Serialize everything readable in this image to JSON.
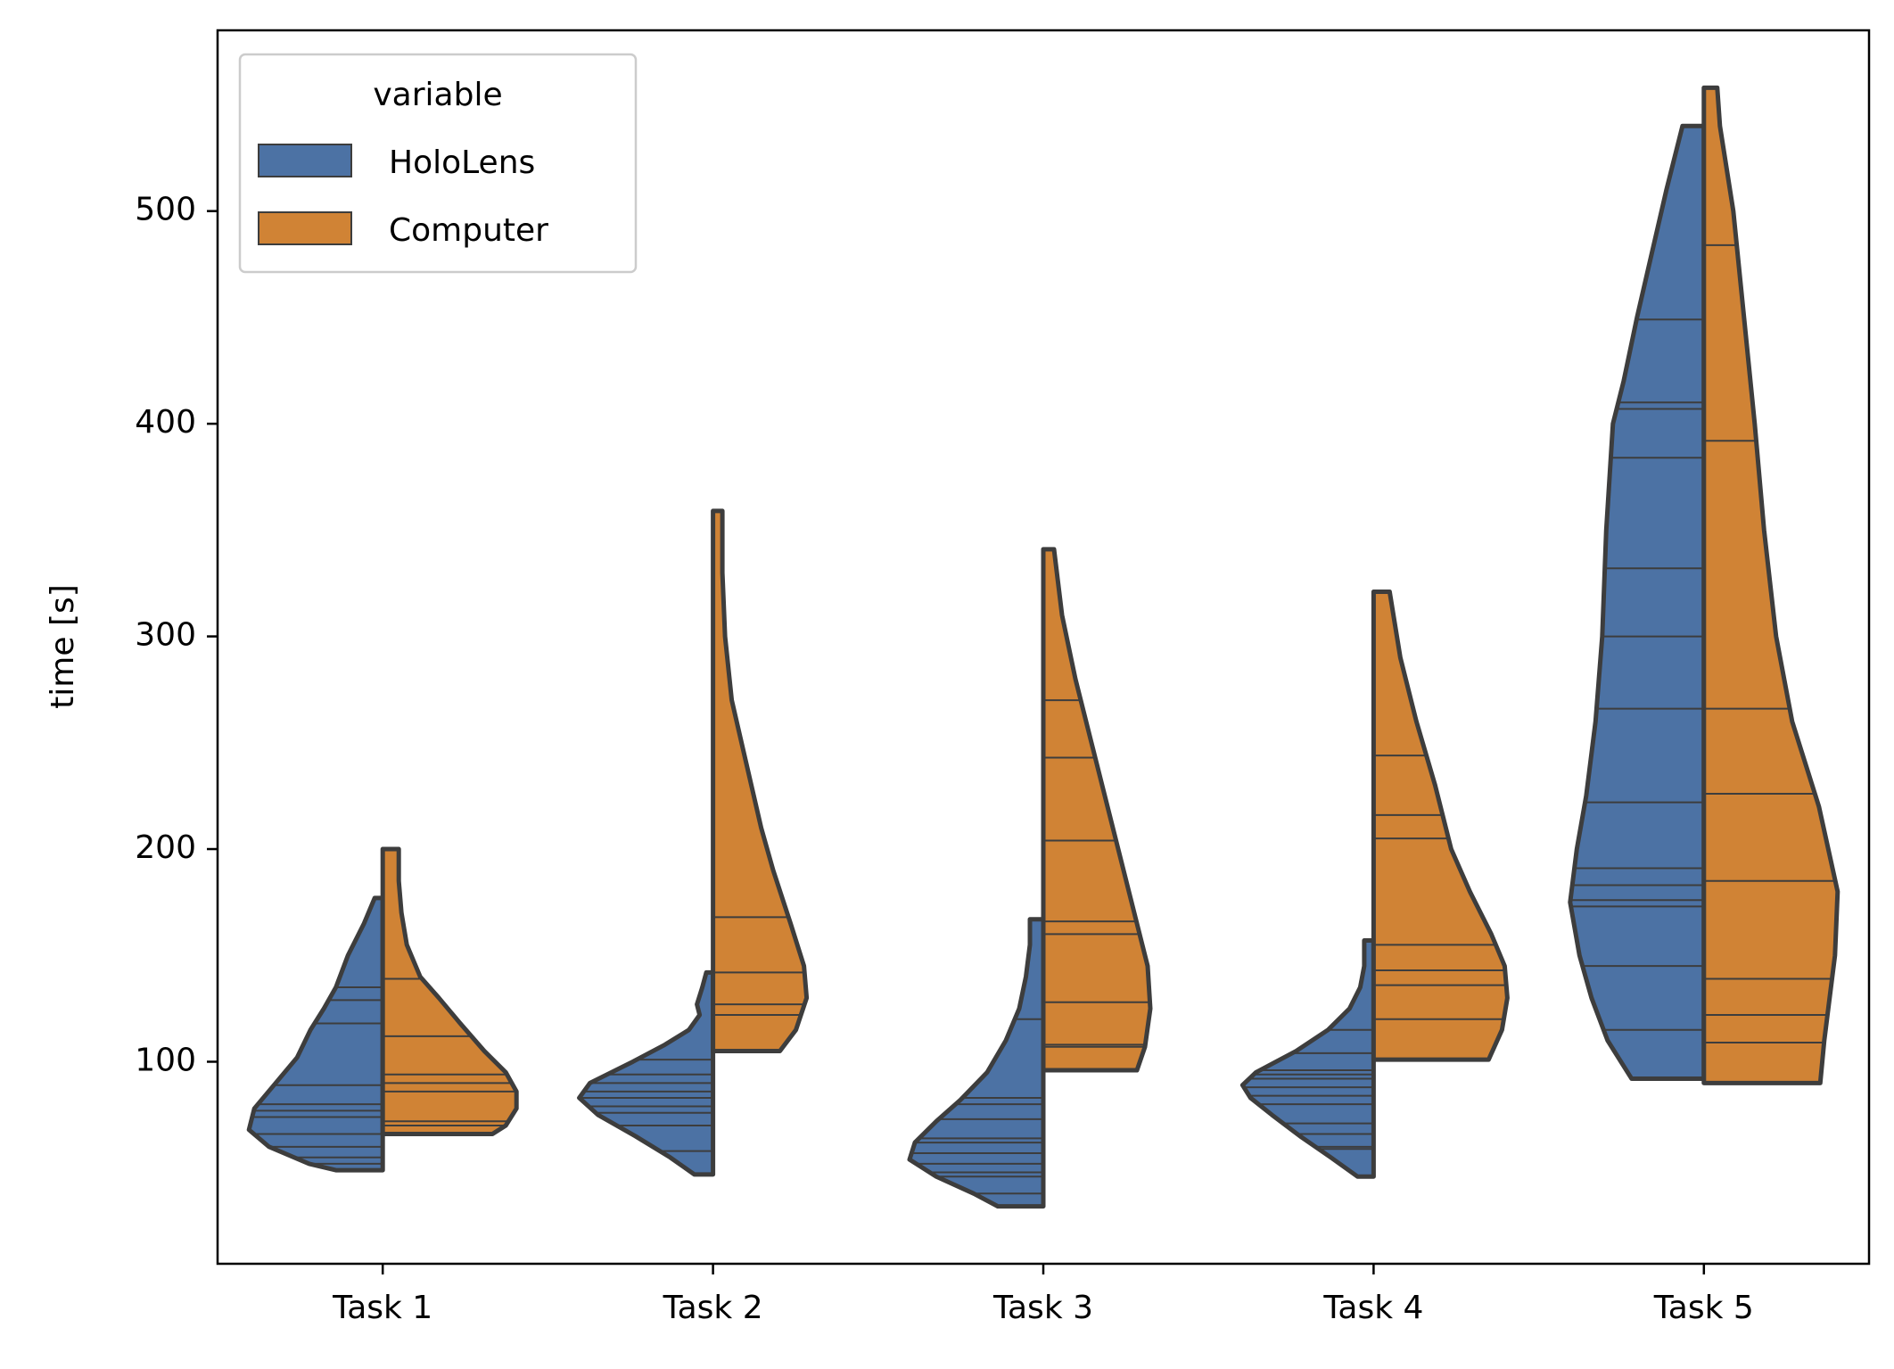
{
  "chart_data": {
    "type": "violin",
    "split": true,
    "inner": "stick",
    "title": "",
    "xlabel": "",
    "ylabel": "time [s]",
    "ylim": [
      5,
      585
    ],
    "yticks": [
      100,
      200,
      300,
      400,
      500
    ],
    "categories": [
      "Task 1",
      "Task 2",
      "Task 3",
      "Task 4",
      "Task 5"
    ],
    "legend": {
      "title": "variable",
      "location": "upper-left",
      "entries": [
        {
          "name": "HoloLens",
          "color": "#4c72a4"
        },
        {
          "name": "Computer",
          "color": "#d08335"
        }
      ]
    },
    "series": [
      {
        "name": "HoloLens",
        "color": "#4c72a4",
        "groups": [
          {
            "category": "Task 1",
            "min": 49,
            "max": 177,
            "sticks": [
              52,
              55,
              60,
              66,
              74,
              77,
              80,
              89,
              118,
              129,
              135
            ]
          },
          {
            "category": "Task 2",
            "min": 47,
            "max": 142,
            "sticks": [
              58,
              70,
              76,
              79,
              83,
              86,
              90,
              94,
              101
            ]
          },
          {
            "category": "Task 3",
            "min": 32,
            "max": 167,
            "sticks": [
              38,
              46,
              48,
              52,
              57,
              62,
              64,
              73,
              80,
              83,
              120
            ]
          },
          {
            "category": "Task 4",
            "min": 46,
            "max": 157,
            "sticks": [
              59,
              60,
              66,
              71,
              80,
              84,
              88,
              92,
              94,
              96,
              104,
              115
            ]
          },
          {
            "category": "Task 5",
            "min": 92,
            "max": 540,
            "sticks": [
              115,
              145,
              173,
              176,
              183,
              191,
              222,
              266,
              300,
              332,
              384,
              407,
              410,
              449
            ]
          }
        ],
        "density_shape": [
          [
            [
              49,
              0.35
            ],
            [
              52,
              0.55
            ],
            [
              60,
              0.85
            ],
            [
              68,
              1.0
            ],
            [
              78,
              0.96
            ],
            [
              90,
              0.8
            ],
            [
              102,
              0.64
            ],
            [
              115,
              0.54
            ],
            [
              125,
              0.44
            ],
            [
              135,
              0.35
            ],
            [
              150,
              0.26
            ],
            [
              165,
              0.14
            ],
            [
              177,
              0.06
            ]
          ],
          [
            [
              47,
              0.14
            ],
            [
              55,
              0.32
            ],
            [
              65,
              0.58
            ],
            [
              75,
              0.86
            ],
            [
              83,
              1.0
            ],
            [
              90,
              0.92
            ],
            [
              100,
              0.6
            ],
            [
              108,
              0.36
            ],
            [
              115,
              0.18
            ],
            [
              122,
              0.1
            ],
            [
              127,
              0.12
            ],
            [
              135,
              0.08
            ],
            [
              142,
              0.05
            ]
          ],
          [
            [
              32,
              0.34
            ],
            [
              38,
              0.52
            ],
            [
              46,
              0.8
            ],
            [
              54,
              1.0
            ],
            [
              62,
              0.96
            ],
            [
              72,
              0.8
            ],
            [
              82,
              0.62
            ],
            [
              95,
              0.42
            ],
            [
              110,
              0.28
            ],
            [
              125,
              0.18
            ],
            [
              140,
              0.13
            ],
            [
              155,
              0.1
            ],
            [
              167,
              0.1
            ]
          ],
          [
            [
              46,
              0.12
            ],
            [
              55,
              0.32
            ],
            [
              65,
              0.55
            ],
            [
              75,
              0.76
            ],
            [
              83,
              0.92
            ],
            [
              89,
              0.98
            ],
            [
              95,
              0.88
            ],
            [
              105,
              0.58
            ],
            [
              115,
              0.34
            ],
            [
              125,
              0.18
            ],
            [
              135,
              0.1
            ],
            [
              145,
              0.07
            ],
            [
              157,
              0.07
            ]
          ],
          [
            [
              92,
              0.54
            ],
            [
              110,
              0.72
            ],
            [
              130,
              0.84
            ],
            [
              150,
              0.93
            ],
            [
              175,
              1.0
            ],
            [
              200,
              0.95
            ],
            [
              225,
              0.88
            ],
            [
              260,
              0.81
            ],
            [
              300,
              0.76
            ],
            [
              350,
              0.73
            ],
            [
              400,
              0.68
            ],
            [
              420,
              0.6
            ],
            [
              450,
              0.5
            ],
            [
              480,
              0.39
            ],
            [
              510,
              0.28
            ],
            [
              540,
              0.16
            ]
          ]
        ]
      },
      {
        "name": "Computer",
        "color": "#d08335",
        "groups": [
          {
            "category": "Task 1",
            "min": 66,
            "max": 200,
            "sticks": [
              70,
              72,
              86,
              90,
              94,
              112,
              139
            ]
          },
          {
            "category": "Task 2",
            "min": 105,
            "max": 359,
            "sticks": [
              122,
              127,
              142,
              168
            ]
          },
          {
            "category": "Task 3",
            "min": 96,
            "max": 341,
            "sticks": [
              107,
              108,
              128,
              160,
              166,
              204,
              243,
              270
            ]
          },
          {
            "category": "Task 4",
            "min": 101,
            "max": 321,
            "sticks": [
              120,
              136,
              143,
              155,
              205,
              216,
              244
            ]
          },
          {
            "category": "Task 5",
            "min": 90,
            "max": 558,
            "sticks": [
              109,
              122,
              139,
              185,
              226,
              266,
              392,
              484
            ]
          }
        ],
        "density_shape": [
          [
            [
              66,
              0.82
            ],
            [
              70,
              0.92
            ],
            [
              78,
              1.0
            ],
            [
              86,
              1.0
            ],
            [
              95,
              0.92
            ],
            [
              105,
              0.76
            ],
            [
              118,
              0.58
            ],
            [
              130,
              0.42
            ],
            [
              140,
              0.28
            ],
            [
              155,
              0.18
            ],
            [
              170,
              0.14
            ],
            [
              185,
              0.12
            ],
            [
              200,
              0.12
            ]
          ],
          [
            [
              105,
              0.5
            ],
            [
              115,
              0.62
            ],
            [
              130,
              0.7
            ],
            [
              145,
              0.68
            ],
            [
              165,
              0.58
            ],
            [
              190,
              0.45
            ],
            [
              210,
              0.36
            ],
            [
              240,
              0.25
            ],
            [
              270,
              0.14
            ],
            [
              300,
              0.09
            ],
            [
              330,
              0.07
            ],
            [
              359,
              0.07
            ]
          ],
          [
            [
              96,
              0.7
            ],
            [
              107,
              0.76
            ],
            [
              125,
              0.8
            ],
            [
              145,
              0.78
            ],
            [
              170,
              0.68
            ],
            [
              195,
              0.58
            ],
            [
              220,
              0.48
            ],
            [
              250,
              0.36
            ],
            [
              280,
              0.24
            ],
            [
              310,
              0.14
            ],
            [
              341,
              0.08
            ]
          ],
          [
            [
              101,
              0.86
            ],
            [
              115,
              0.96
            ],
            [
              130,
              1.0
            ],
            [
              145,
              0.98
            ],
            [
              160,
              0.88
            ],
            [
              180,
              0.72
            ],
            [
              200,
              0.58
            ],
            [
              230,
              0.46
            ],
            [
              260,
              0.32
            ],
            [
              290,
              0.2
            ],
            [
              321,
              0.12
            ]
          ],
          [
            [
              90,
              0.87
            ],
            [
              110,
              0.9
            ],
            [
              130,
              0.94
            ],
            [
              150,
              0.98
            ],
            [
              180,
              1.0
            ],
            [
              220,
              0.86
            ],
            [
              260,
              0.66
            ],
            [
              300,
              0.54
            ],
            [
              350,
              0.45
            ],
            [
              400,
              0.38
            ],
            [
              450,
              0.3
            ],
            [
              500,
              0.22
            ],
            [
              540,
              0.12
            ],
            [
              558,
              0.1
            ]
          ]
        ]
      }
    ]
  }
}
